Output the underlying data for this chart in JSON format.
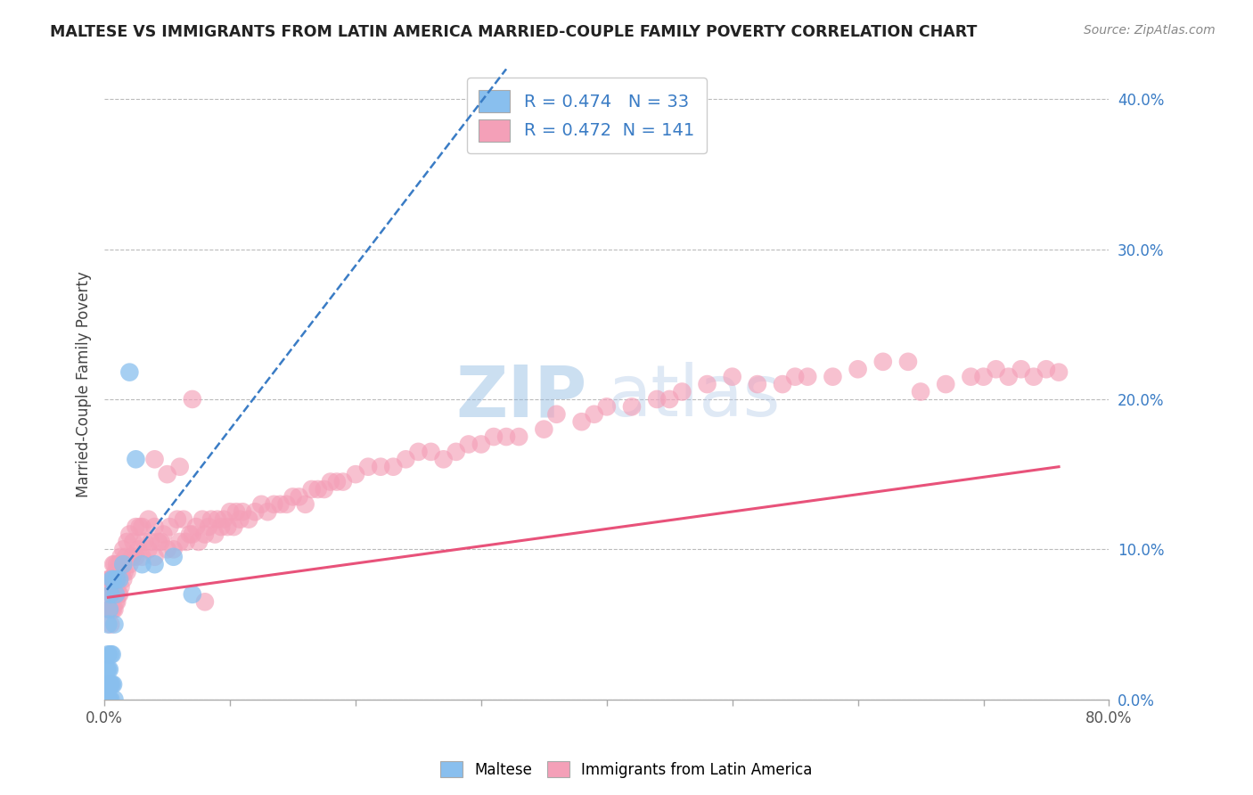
{
  "title": "MALTESE VS IMMIGRANTS FROM LATIN AMERICA MARRIED-COUPLE FAMILY POVERTY CORRELATION CHART",
  "source": "Source: ZipAtlas.com",
  "ylabel": "Married-Couple Family Poverty",
  "R_blue": 0.474,
  "N_blue": 33,
  "R_pink": 0.472,
  "N_pink": 141,
  "xlim": [
    0.0,
    0.8
  ],
  "ylim": [
    0.0,
    0.42
  ],
  "blue_color": "#89BFEE",
  "pink_color": "#F4A0B8",
  "blue_line_color": "#3A7CC5",
  "pink_line_color": "#E8527A",
  "legend_label_blue": "Maltese",
  "legend_label_pink": "Immigrants from Latin America",
  "legend_R_N_color": "#3A7CC5",
  "watermark_color": "#C8D8EE",
  "background_color": "#FFFFFF",
  "grid_color": "#BBBBBB",
  "blue_x": [
    0.002,
    0.002,
    0.002,
    0.003,
    0.003,
    0.003,
    0.003,
    0.003,
    0.004,
    0.004,
    0.004,
    0.004,
    0.005,
    0.005,
    0.005,
    0.005,
    0.006,
    0.006,
    0.006,
    0.007,
    0.007,
    0.008,
    0.008,
    0.009,
    0.01,
    0.012,
    0.015,
    0.02,
    0.025,
    0.03,
    0.04,
    0.055,
    0.07
  ],
  "blue_y": [
    0.0,
    0.01,
    0.02,
    0.0,
    0.01,
    0.02,
    0.03,
    0.05,
    0.0,
    0.01,
    0.02,
    0.06,
    0.0,
    0.01,
    0.03,
    0.07,
    0.01,
    0.03,
    0.08,
    0.01,
    0.08,
    0.0,
    0.05,
    0.07,
    0.08,
    0.08,
    0.09,
    0.218,
    0.16,
    0.09,
    0.09,
    0.095,
    0.07
  ],
  "pink_x": [
    0.003,
    0.003,
    0.004,
    0.004,
    0.005,
    0.005,
    0.005,
    0.005,
    0.006,
    0.006,
    0.006,
    0.007,
    0.007,
    0.007,
    0.008,
    0.008,
    0.008,
    0.009,
    0.009,
    0.01,
    0.01,
    0.01,
    0.011,
    0.011,
    0.012,
    0.012,
    0.013,
    0.013,
    0.014,
    0.015,
    0.015,
    0.016,
    0.017,
    0.018,
    0.018,
    0.02,
    0.02,
    0.022,
    0.023,
    0.025,
    0.025,
    0.027,
    0.028,
    0.03,
    0.03,
    0.032,
    0.035,
    0.035,
    0.037,
    0.04,
    0.04,
    0.043,
    0.045,
    0.047,
    0.05,
    0.052,
    0.055,
    0.058,
    0.06,
    0.063,
    0.065,
    0.068,
    0.07,
    0.073,
    0.075,
    0.078,
    0.08,
    0.083,
    0.085,
    0.088,
    0.09,
    0.093,
    0.095,
    0.098,
    0.1,
    0.103,
    0.105,
    0.108,
    0.11,
    0.115,
    0.12,
    0.125,
    0.13,
    0.135,
    0.14,
    0.145,
    0.15,
    0.155,
    0.16,
    0.165,
    0.17,
    0.175,
    0.18,
    0.185,
    0.19,
    0.2,
    0.21,
    0.22,
    0.23,
    0.24,
    0.25,
    0.26,
    0.27,
    0.28,
    0.29,
    0.3,
    0.31,
    0.32,
    0.33,
    0.35,
    0.36,
    0.38,
    0.39,
    0.4,
    0.42,
    0.44,
    0.45,
    0.46,
    0.48,
    0.5,
    0.52,
    0.54,
    0.55,
    0.56,
    0.58,
    0.6,
    0.62,
    0.64,
    0.65,
    0.67,
    0.69,
    0.7,
    0.71,
    0.72,
    0.73,
    0.74,
    0.75,
    0.76,
    0.04,
    0.05,
    0.06,
    0.07,
    0.08
  ],
  "pink_y": [
    0.06,
    0.08,
    0.06,
    0.08,
    0.05,
    0.06,
    0.07,
    0.08,
    0.06,
    0.07,
    0.08,
    0.06,
    0.075,
    0.09,
    0.06,
    0.075,
    0.09,
    0.065,
    0.085,
    0.065,
    0.075,
    0.09,
    0.07,
    0.085,
    0.07,
    0.09,
    0.075,
    0.095,
    0.085,
    0.08,
    0.1,
    0.085,
    0.095,
    0.085,
    0.105,
    0.09,
    0.11,
    0.095,
    0.105,
    0.095,
    0.115,
    0.1,
    0.115,
    0.095,
    0.115,
    0.105,
    0.1,
    0.12,
    0.105,
    0.095,
    0.115,
    0.105,
    0.105,
    0.11,
    0.1,
    0.115,
    0.1,
    0.12,
    0.105,
    0.12,
    0.105,
    0.11,
    0.11,
    0.115,
    0.105,
    0.12,
    0.11,
    0.115,
    0.12,
    0.11,
    0.12,
    0.115,
    0.12,
    0.115,
    0.125,
    0.115,
    0.125,
    0.12,
    0.125,
    0.12,
    0.125,
    0.13,
    0.125,
    0.13,
    0.13,
    0.13,
    0.135,
    0.135,
    0.13,
    0.14,
    0.14,
    0.14,
    0.145,
    0.145,
    0.145,
    0.15,
    0.155,
    0.155,
    0.155,
    0.16,
    0.165,
    0.165,
    0.16,
    0.165,
    0.17,
    0.17,
    0.175,
    0.175,
    0.175,
    0.18,
    0.19,
    0.185,
    0.19,
    0.195,
    0.195,
    0.2,
    0.2,
    0.205,
    0.21,
    0.215,
    0.21,
    0.21,
    0.215,
    0.215,
    0.215,
    0.22,
    0.225,
    0.225,
    0.205,
    0.21,
    0.215,
    0.215,
    0.22,
    0.215,
    0.22,
    0.215,
    0.22,
    0.218,
    0.16,
    0.15,
    0.155,
    0.2,
    0.065
  ],
  "blue_trendline_x": [
    0.002,
    0.32
  ],
  "blue_trendline_y": [
    0.073,
    0.42
  ],
  "pink_trendline_x": [
    0.003,
    0.76
  ],
  "pink_trendline_y": [
    0.068,
    0.155
  ]
}
